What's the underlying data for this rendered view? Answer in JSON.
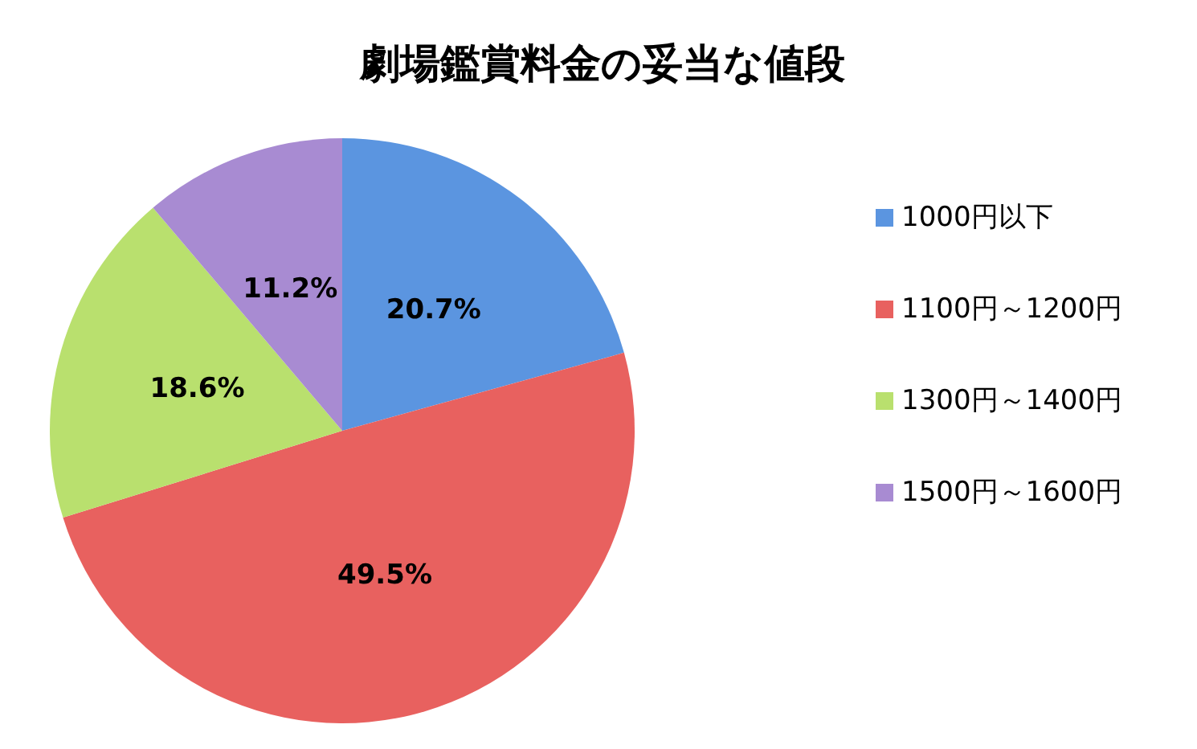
{
  "chart_data": {
    "type": "pie",
    "title": "劇場鑑賞料金の妥当な値段",
    "categories": [
      "1000円以下",
      "1100円～1200円",
      "1300円～1400円",
      "1500円～1600円"
    ],
    "values": [
      20.7,
      49.5,
      18.6,
      11.2
    ],
    "value_labels": [
      "20.7%",
      "49.5%",
      "18.6%",
      "11.2%"
    ],
    "colors": [
      "#5b95e0",
      "#e8615f",
      "#b9e06e",
      "#a88bd2"
    ],
    "legend": "right"
  }
}
